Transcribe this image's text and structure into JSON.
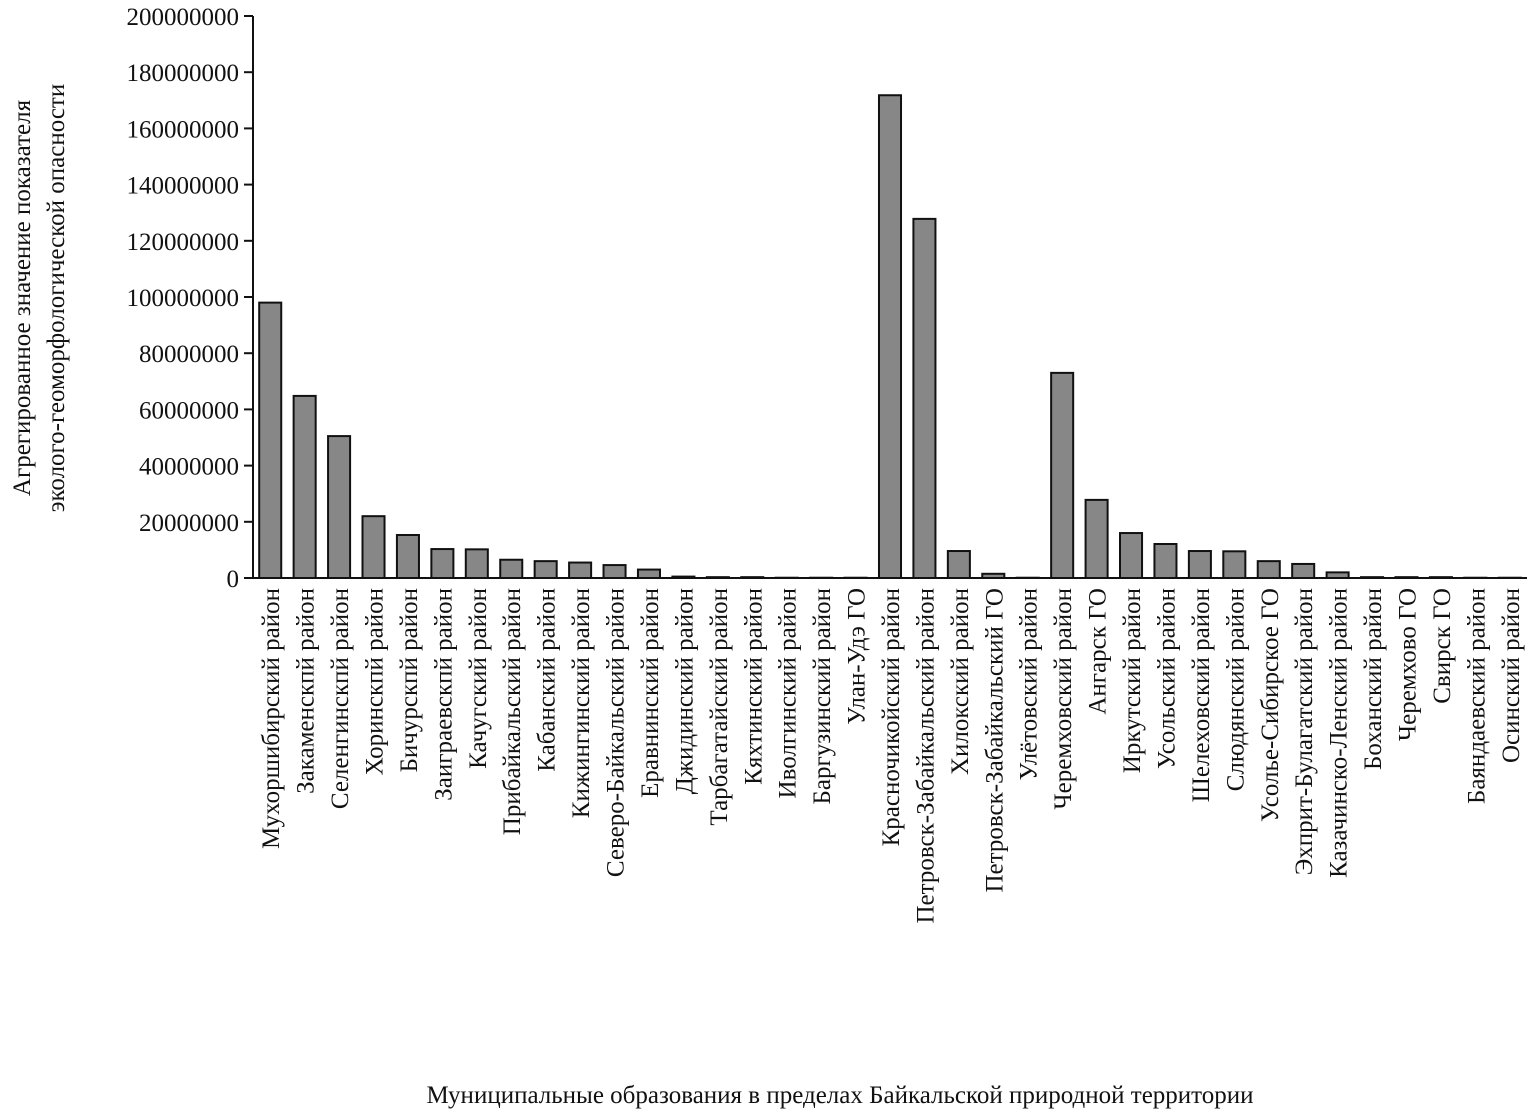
{
  "chart_data": {
    "type": "bar",
    "ylabel": [
      "Агрегированное значение показателя",
      "эколого-геоморфологической опасности"
    ],
    "xlabel": "Муниципальные образования в пределах Байкальской природной территории",
    "categories": [
      "Мухоршибирский район",
      "Закаменскпй район",
      "Селенгинскпй район",
      "Хоринскпй район",
      "Бичурскпй район",
      "Заиграевскпй район",
      "Качугский район",
      "Прибайкальский район",
      "Кабанский район",
      "Кижингинский район",
      "Северо-Байкальский район",
      "Еравнинский район",
      "Джидинский район",
      "Тарбагатайский район",
      "Кяхтинский район",
      "Иволгинский район",
      "Баргузинский район",
      "Улан-Удэ ГО",
      "Красночикойский район",
      "Петровск-Забайкальский район",
      "Хилокский район",
      "Петровск-Забайкальский ГО",
      "Улётовский район",
      "Черемховский район",
      "Ангарск ГО",
      "Иркутский район",
      "Усольский район",
      "Шелеховский район",
      "Слюдянский район",
      "Усолье-Сибирское ГО",
      "Эхприт-Булагатский район",
      "Казачинско-Ленский район",
      "Боханский район",
      "Черемхово ГО",
      "Свирск ГО",
      "Баяндаевский район",
      "Осинский район"
    ],
    "values": [
      98000000,
      64800000,
      50500000,
      22000000,
      15300000,
      10300000,
      10200000,
      6500000,
      6000000,
      5500000,
      4600000,
      3000000,
      500000,
      300000,
      300000,
      100000,
      100000,
      100000,
      171800000,
      127800000,
      9600000,
      1500000,
      100000,
      73000000,
      27800000,
      16000000,
      12100000,
      9600000,
      9500000,
      6000000,
      5000000,
      2000000,
      300000,
      300000,
      300000,
      100000,
      100000
    ],
    "color": "#878787",
    "ylim": [
      0,
      200000000
    ],
    "yticks": [
      0,
      20000000,
      40000000,
      60000000,
      80000000,
      100000000,
      120000000,
      140000000,
      160000000,
      180000000,
      200000000
    ]
  }
}
